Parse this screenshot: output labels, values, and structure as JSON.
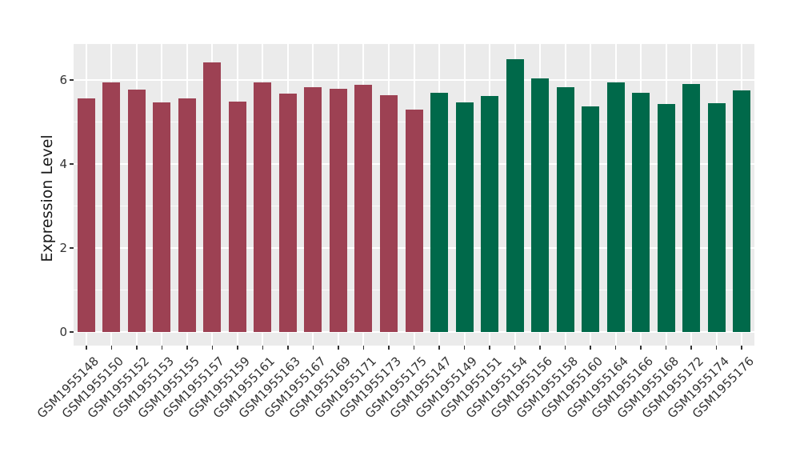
{
  "figure": {
    "kind": "ggplot-style bar chart",
    "background": "#ffffff",
    "panel_background": "#ebebeb",
    "grid_color": "#ffffff",
    "tick_color": "#333333",
    "axis_text_color": "#333333",
    "axis_title_color": "#1a1a1a"
  },
  "y_axis": {
    "title": "Expression Level",
    "tick_labels": [
      "0",
      "2",
      "4",
      "6"
    ],
    "tick_values": [
      0,
      2,
      4,
      6
    ],
    "minor_values": [
      1,
      3,
      5
    ]
  },
  "chart_data": {
    "type": "bar",
    "title": "",
    "xlabel": "",
    "ylabel": "Expression Level",
    "ylim": [
      -0.33,
      6.87
    ],
    "yticks": [
      0,
      2,
      4,
      6
    ],
    "grid": "on",
    "legend": "none",
    "groups": [
      {
        "name": "left-group-maroon",
        "color": "#9d4153"
      },
      {
        "name": "right-group-green",
        "color": "#00694a"
      }
    ],
    "categories": [
      "GSM1955148",
      "GSM1955150",
      "GSM1955152",
      "GSM1955153",
      "GSM1955155",
      "GSM1955157",
      "GSM1955159",
      "GSM1955161",
      "GSM1955163",
      "GSM1955167",
      "GSM1955169",
      "GSM1955171",
      "GSM1955173",
      "GSM1955175",
      "GSM1955147",
      "GSM1955149",
      "GSM1955151",
      "GSM1955154",
      "GSM1955156",
      "GSM1955158",
      "GSM1955160",
      "GSM1955164",
      "GSM1955166",
      "GSM1955168",
      "GSM1955172",
      "GSM1955174",
      "GSM1955176"
    ],
    "values": [
      5.57,
      5.95,
      5.77,
      5.46,
      5.57,
      6.41,
      5.48,
      5.94,
      5.68,
      5.82,
      5.8,
      5.88,
      5.64,
      5.3,
      5.69,
      5.47,
      5.61,
      6.5,
      6.04,
      5.82,
      5.38,
      5.95,
      5.7,
      5.42,
      5.9,
      5.45,
      5.76
    ],
    "bar_group_index": [
      0,
      0,
      0,
      0,
      0,
      0,
      0,
      0,
      0,
      0,
      0,
      0,
      0,
      0,
      1,
      1,
      1,
      1,
      1,
      1,
      1,
      1,
      1,
      1,
      1,
      1,
      1
    ]
  }
}
